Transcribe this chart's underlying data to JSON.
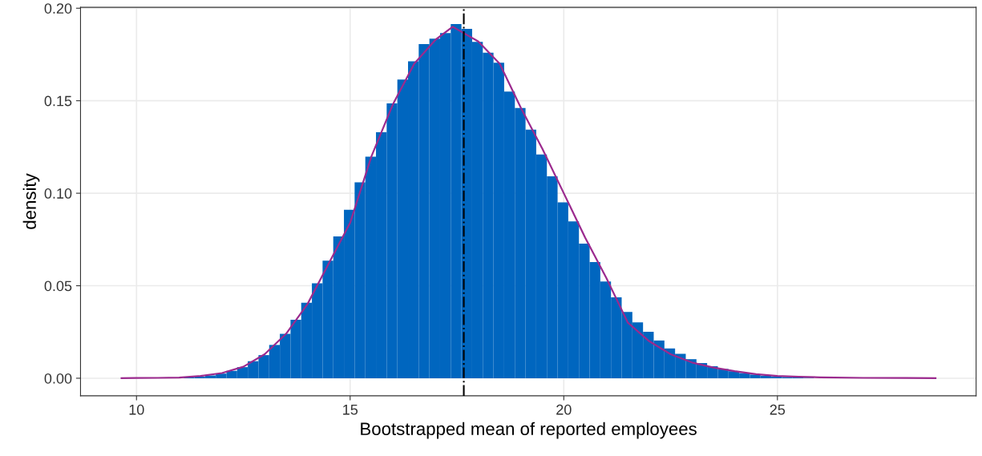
{
  "chart_data": {
    "type": "histogram",
    "xlabel": "Bootstrapped mean of reported employees",
    "ylabel": "density",
    "bins": [
      10.855,
      11.105,
      11.355,
      11.605,
      11.855,
      12.105,
      12.355,
      12.605,
      12.855,
      13.105,
      13.355,
      13.605,
      13.855,
      14.105,
      14.355,
      14.605,
      14.855,
      15.105,
      15.355,
      15.605,
      15.855,
      16.105,
      16.355,
      16.605,
      16.855,
      17.105,
      17.355,
      17.605,
      17.855,
      18.105,
      18.355,
      18.605,
      18.855,
      19.105,
      19.355,
      19.605,
      19.855,
      20.105,
      20.355,
      20.605,
      20.855,
      21.105,
      21.355,
      21.605,
      21.855,
      22.105,
      22.355,
      22.605,
      22.855,
      23.105,
      23.355,
      23.605,
      23.855,
      24.105,
      24.355,
      24.605,
      24.855,
      25.105,
      25.355,
      25.605,
      25.855
    ],
    "values": [
      null,
      0.0005,
      0.0009,
      0.0015,
      0.0025,
      0.004,
      0.006,
      0.0092,
      0.0125,
      0.018,
      0.024,
      0.0316,
      0.0408,
      0.0513,
      0.0635,
      0.0767,
      0.0911,
      0.1059,
      0.1198,
      0.133,
      0.1486,
      0.1615,
      0.1713,
      0.1806,
      0.1835,
      0.1866,
      0.1914,
      0.1888,
      0.1818,
      0.176,
      0.1705,
      0.155,
      0.1461,
      0.1344,
      0.121,
      0.1091,
      0.0951,
      0.0848,
      0.0728,
      0.0628,
      0.0523,
      0.0437,
      0.0358,
      0.0302,
      0.0251,
      0.0204,
      0.0161,
      0.0132,
      0.0103,
      0.0082,
      0.0065,
      0.005,
      0.0038,
      0.0028,
      0.002,
      0.0014,
      0.001,
      0.0007,
      0.0005,
      0.0003
    ],
    "color": "#0066bf",
    "series": [
      {
        "type": "line",
        "color": "#9b2a8e",
        "x": [
          9.65,
          10,
          10.5,
          11,
          11.5,
          12,
          12.5,
          13,
          13.5,
          14,
          14.5,
          15,
          15.5,
          16,
          16.5,
          17,
          17.4,
          18,
          18.5,
          19,
          19.5,
          20,
          20.5,
          21,
          21.5,
          22,
          22.5,
          23,
          23.5,
          24,
          24.5,
          25,
          25.5,
          26,
          27,
          28,
          28.7
        ],
        "values": [
          0,
          0.0001,
          0.0002,
          0.0004,
          0.0012,
          0.0028,
          0.0062,
          0.013,
          0.024,
          0.04,
          0.062,
          0.084,
          0.12,
          0.148,
          0.17,
          0.183,
          0.19,
          0.182,
          0.17,
          0.146,
          0.124,
          0.1,
          0.076,
          0.054,
          0.03,
          0.02,
          0.013,
          0.0085,
          0.0058,
          0.0038,
          0.0022,
          0.0012,
          0.0008,
          0.0005,
          0.0002,
          0.0001,
          0
        ]
      }
    ],
    "ref_lines": [
      {
        "axis": "x",
        "value": 17.66,
        "color": "#000000",
        "line_style": "dashdot"
      }
    ],
    "xlim": [
      8.69,
      29.65
    ],
    "ylim": [
      -0.0095,
      0.2005
    ],
    "xticks": [
      10,
      15,
      20,
      25
    ],
    "yticks": [
      {
        "value": 0,
        "label": "0.00"
      },
      {
        "value": 0.05,
        "label": "0.05"
      },
      {
        "value": 0.1,
        "label": "0.10"
      },
      {
        "value": 0.15,
        "label": "0.15"
      },
      {
        "value": 0.2,
        "label": "0.20"
      }
    ],
    "grid": true
  }
}
